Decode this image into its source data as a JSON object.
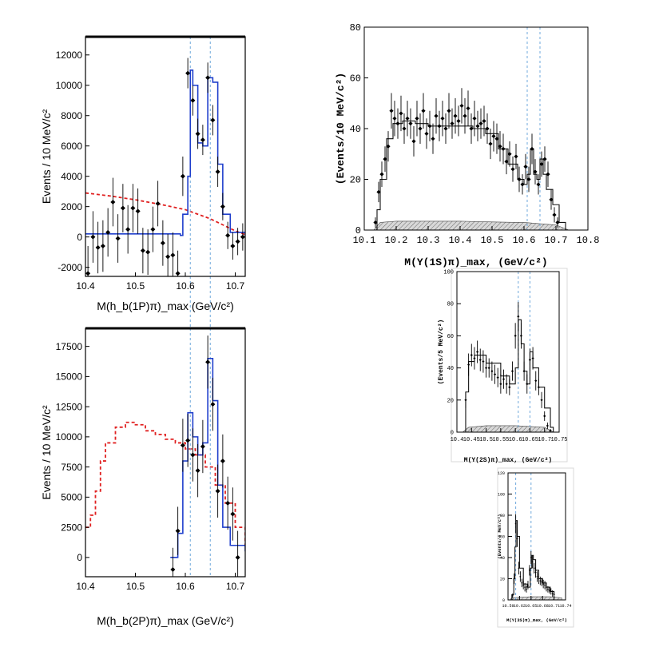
{
  "chart_data": [
    {
      "type": "line",
      "id": "hb1p",
      "xlabel": "M(h_b(1P)π)_max (GeV/c²)",
      "ylabel": "Events / 10 MeV/c²",
      "xlim": [
        10.4,
        10.72
      ],
      "ylim": [
        -2600,
        13200
      ],
      "xticks": [
        "10.4",
        "10.5",
        "10.6",
        "10.7"
      ],
      "yticks": [
        "-2000",
        "0",
        "2000",
        "4000",
        "6000",
        "8000",
        "10000",
        "12000"
      ],
      "vlines": [
        10.61,
        10.65
      ],
      "fit": {
        "x": [
          10.4,
          10.59,
          10.595,
          10.605,
          10.61,
          10.615,
          10.625,
          10.635,
          10.645,
          10.655,
          10.665,
          10.675,
          10.69,
          10.72
        ],
        "y": [
          200,
          100,
          1500,
          4000,
          11000,
          10000,
          6200,
          6000,
          10500,
          10200,
          4800,
          1500,
          300,
          100
        ]
      },
      "background": {
        "x": [
          10.4,
          10.45,
          10.5,
          10.55,
          10.6,
          10.65,
          10.7,
          10.72
        ],
        "y": [
          2900,
          2700,
          2450,
          2150,
          1800,
          1200,
          400,
          150
        ]
      },
      "points": {
        "x": [
          10.405,
          10.415,
          10.425,
          10.435,
          10.445,
          10.455,
          10.465,
          10.475,
          10.485,
          10.495,
          10.505,
          10.515,
          10.525,
          10.535,
          10.545,
          10.555,
          10.565,
          10.575,
          10.585,
          10.595,
          10.605,
          10.615,
          10.625,
          10.635,
          10.645,
          10.655,
          10.665,
          10.675,
          10.685,
          10.695,
          10.705,
          10.715
        ],
        "y": [
          -2400,
          0,
          -700,
          -600,
          300,
          2300,
          -100,
          1900,
          500,
          1900,
          1700,
          -900,
          -1000,
          500,
          2200,
          -400,
          -1300,
          -1200,
          -2400,
          4000,
          10800,
          9000,
          6800,
          6400,
          10500,
          7700,
          4300,
          2000,
          100,
          -600,
          -300,
          0
        ],
        "err": [
          1800,
          1700,
          1700,
          1700,
          1600,
          1600,
          1600,
          1600,
          1600,
          1600,
          1500,
          1500,
          1500,
          1500,
          1500,
          1500,
          1500,
          1500,
          1500,
          1300,
          1000,
          1000,
          1000,
          1000,
          1000,
          1000,
          1000,
          900,
          900,
          900,
          900,
          900
        ]
      }
    },
    {
      "type": "line",
      "id": "hb2p",
      "xlabel": "M(h_b(2P)π)_max (GeV/c²)",
      "ylabel": "Events / 10 MeV/c²",
      "xlim": [
        10.4,
        10.72
      ],
      "ylim": [
        -1600,
        19000
      ],
      "xticks": [
        "10.4",
        "10.5",
        "10.6",
        "10.7"
      ],
      "yticks": [
        "0",
        "2500",
        "5000",
        "7500",
        "10000",
        "12500",
        "15000",
        "17500"
      ],
      "vlines": [
        10.61,
        10.65
      ],
      "fit": {
        "x": [
          10.57,
          10.585,
          10.595,
          10.605,
          10.615,
          10.625,
          10.635,
          10.645,
          10.655,
          10.665,
          10.675,
          10.69,
          10.72
        ],
        "y": [
          0,
          2000,
          8000,
          12000,
          10000,
          8500,
          9500,
          16500,
          13000,
          6000,
          2500,
          1000,
          500
        ]
      },
      "background": {
        "x": [
          10.4,
          10.41,
          10.42,
          10.43,
          10.44,
          10.46,
          10.48,
          10.5,
          10.52,
          10.54,
          10.56,
          10.58,
          10.6,
          10.62,
          10.64,
          10.66,
          10.68,
          10.7,
          10.72
        ],
        "y": [
          2500,
          3500,
          5500,
          8000,
          9500,
          10800,
          11200,
          11000,
          10500,
          10200,
          9800,
          9500,
          9000,
          8500,
          7500,
          6000,
          4500,
          2500,
          1000
        ]
      },
      "points": {
        "x": [
          10.575,
          10.585,
          10.595,
          10.605,
          10.615,
          10.625,
          10.635,
          10.645,
          10.655,
          10.665,
          10.675,
          10.685,
          10.695,
          10.705
        ],
        "y": [
          -1000,
          2200,
          9300,
          9700,
          8500,
          7200,
          9200,
          16200,
          12700,
          5500,
          8000,
          4500,
          3600,
          0
        ],
        "err": [
          1800,
          2000,
          2200,
          2200,
          2200,
          2200,
          2200,
          2200,
          2200,
          2200,
          2200,
          2200,
          2200,
          2200
        ]
      }
    },
    {
      "type": "line",
      "id": "y1s",
      "xlabel": "M(Υ(1S)π)_max, (GeV/c²)",
      "ylabel": "(Events/10 MeV/c²)",
      "xlim": [
        10.1,
        10.8
      ],
      "ylim": [
        0,
        80
      ],
      "xticks": [
        "10.1",
        "10.2",
        "10.3",
        "10.4",
        "10.5",
        "10.6",
        "10.7",
        "10.8"
      ],
      "yticks": [
        "0",
        "20",
        "40",
        "60",
        "80"
      ],
      "vlines": [
        10.61,
        10.65
      ],
      "fit": {
        "x": [
          10.13,
          10.14,
          10.15,
          10.17,
          10.19,
          10.22,
          10.26,
          10.3,
          10.35,
          10.4,
          10.44,
          10.48,
          10.52,
          10.55,
          10.58,
          10.6,
          10.61,
          10.62,
          10.63,
          10.64,
          10.65,
          10.66,
          10.67,
          10.69,
          10.71,
          10.73
        ],
        "y": [
          0,
          8,
          20,
          36,
          42,
          43,
          42,
          41,
          41,
          41,
          40,
          38,
          32,
          26,
          20,
          18,
          22,
          32,
          22,
          20,
          28,
          22,
          16,
          10,
          3,
          0
        ]
      },
      "background": {
        "x": [
          10.13,
          10.15,
          10.2,
          10.3,
          10.4,
          10.5,
          10.6,
          10.7,
          10.74
        ],
        "y": [
          0,
          3,
          3.5,
          3.5,
          3.5,
          3.2,
          3,
          2,
          0
        ]
      },
      "points": {
        "x": [
          10.135,
          10.145,
          10.155,
          10.165,
          10.175,
          10.185,
          10.195,
          10.205,
          10.215,
          10.225,
          10.235,
          10.245,
          10.255,
          10.265,
          10.275,
          10.285,
          10.295,
          10.305,
          10.315,
          10.325,
          10.335,
          10.345,
          10.355,
          10.365,
          10.375,
          10.385,
          10.395,
          10.405,
          10.415,
          10.425,
          10.435,
          10.445,
          10.455,
          10.465,
          10.475,
          10.485,
          10.495,
          10.505,
          10.515,
          10.525,
          10.535,
          10.545,
          10.555,
          10.565,
          10.575,
          10.585,
          10.595,
          10.605,
          10.615,
          10.625,
          10.635,
          10.645,
          10.655,
          10.665,
          10.675,
          10.685,
          10.695,
          10.705
        ],
        "y": [
          3,
          15,
          22,
          28,
          33,
          47,
          44,
          42,
          46,
          40,
          44,
          42,
          35,
          44,
          40,
          47,
          38,
          41,
          36,
          45,
          41,
          44,
          40,
          47,
          42,
          45,
          43,
          49,
          45,
          48,
          40,
          44,
          41,
          42,
          43,
          40,
          34,
          37,
          36,
          33,
          32,
          27,
          30,
          24,
          29,
          20,
          18,
          25,
          20,
          32,
          23,
          18,
          26,
          28,
          22,
          12,
          6,
          3
        ],
        "err": [
          2,
          4,
          5,
          5,
          6,
          7,
          7,
          6,
          7,
          6,
          7,
          6,
          6,
          7,
          6,
          7,
          6,
          6,
          6,
          7,
          6,
          7,
          6,
          7,
          6,
          7,
          6,
          7,
          7,
          7,
          6,
          7,
          6,
          6,
          6,
          6,
          6,
          6,
          6,
          6,
          6,
          5,
          5,
          5,
          5,
          5,
          4,
          5,
          5,
          6,
          5,
          4,
          5,
          5,
          5,
          4,
          3,
          2
        ]
      }
    },
    {
      "type": "line",
      "id": "y2s",
      "xlabel": "M(Υ(2S)π)_max, (GeV/c²)",
      "ylabel": "(Events/5 MeV/c²)",
      "xlim": [
        10.4,
        10.75
      ],
      "ylim": [
        0,
        100
      ],
      "xticks": [
        "10.4",
        "10.45",
        "10.5",
        "10.55",
        "10.6",
        "10.65",
        "10.7",
        "10.75"
      ],
      "yticks": [
        "0",
        "20",
        "40",
        "60",
        "80",
        "100"
      ],
      "vlines": [
        10.61,
        10.65
      ],
      "fit": {
        "x": [
          10.42,
          10.43,
          10.44,
          10.46,
          10.5,
          10.55,
          10.58,
          10.6,
          10.61,
          10.62,
          10.63,
          10.64,
          10.65,
          10.66,
          10.68,
          10.7,
          10.72,
          10.73
        ],
        "y": [
          0,
          25,
          44,
          48,
          43,
          35,
          30,
          40,
          70,
          55,
          38,
          30,
          50,
          40,
          28,
          15,
          3,
          0
        ]
      },
      "background": {
        "x": [
          10.42,
          10.44,
          10.5,
          10.6,
          10.7,
          10.73
        ],
        "y": [
          0,
          3,
          4,
          4,
          3,
          0
        ]
      },
      "points": {
        "x": [
          10.43,
          10.44,
          10.45,
          10.46,
          10.47,
          10.48,
          10.49,
          10.5,
          10.51,
          10.52,
          10.53,
          10.54,
          10.55,
          10.56,
          10.57,
          10.58,
          10.59,
          10.6,
          10.61,
          10.62,
          10.63,
          10.64,
          10.65,
          10.66,
          10.67,
          10.68,
          10.69,
          10.7,
          10.71,
          10.72
        ],
        "y": [
          20,
          42,
          48,
          46,
          50,
          45,
          44,
          40,
          40,
          38,
          36,
          34,
          30,
          33,
          30,
          28,
          38,
          60,
          72,
          60,
          38,
          30,
          45,
          46,
          32,
          28,
          20,
          10,
          4,
          1
        ],
        "err": [
          5,
          7,
          7,
          7,
          7,
          7,
          7,
          6,
          6,
          6,
          6,
          6,
          6,
          6,
          6,
          5,
          6,
          8,
          9,
          8,
          6,
          6,
          7,
          7,
          6,
          5,
          5,
          3,
          2,
          1
        ]
      }
    },
    {
      "type": "line",
      "id": "y3s",
      "xlabel": "M(Υ(3S)π)_max, (GeV/c²)",
      "ylabel": "(Events/4 MeV/c²)",
      "xlim": [
        10.59,
        10.74
      ],
      "ylim": [
        0,
        120
      ],
      "xticks": [
        "10.59",
        "10.62",
        "10.65",
        "10.68",
        "10.71",
        "10.74"
      ],
      "yticks": [
        "0",
        "20",
        "40",
        "60",
        "80",
        "100",
        "120"
      ],
      "vlines": [
        10.61,
        10.65
      ],
      "fit": {
        "x": [
          10.595,
          10.6,
          10.605,
          10.608,
          10.611,
          10.614,
          10.62,
          10.63,
          10.64,
          10.648,
          10.652,
          10.656,
          10.662,
          10.67,
          10.68,
          10.69,
          10.7,
          10.71
        ],
        "y": [
          0,
          5,
          20,
          50,
          75,
          60,
          30,
          15,
          12,
          30,
          42,
          38,
          28,
          20,
          16,
          12,
          8,
          5
        ]
      },
      "background": {
        "x": [
          10.595,
          10.6,
          10.65,
          10.7,
          10.73
        ],
        "y": [
          0,
          2,
          3,
          3,
          2
        ]
      },
      "points": {
        "x": [
          10.602,
          10.606,
          10.61,
          10.614,
          10.618,
          10.622,
          10.626,
          10.63,
          10.634,
          10.638,
          10.642,
          10.646,
          10.65,
          10.654,
          10.658,
          10.662,
          10.666,
          10.67,
          10.674,
          10.678,
          10.682,
          10.686,
          10.69,
          10.694,
          10.698,
          10.702,
          10.706,
          10.71
        ],
        "y": [
          4,
          20,
          72,
          58,
          30,
          22,
          16,
          14,
          12,
          10,
          14,
          28,
          40,
          36,
          30,
          26,
          22,
          20,
          18,
          17,
          15,
          14,
          12,
          10,
          9,
          8,
          6,
          5
        ],
        "err": [
          2,
          5,
          9,
          8,
          6,
          5,
          4,
          4,
          4,
          3,
          4,
          5,
          6,
          6,
          5,
          5,
          5,
          5,
          4,
          4,
          4,
          4,
          4,
          3,
          3,
          3,
          3,
          2
        ]
      }
    }
  ]
}
